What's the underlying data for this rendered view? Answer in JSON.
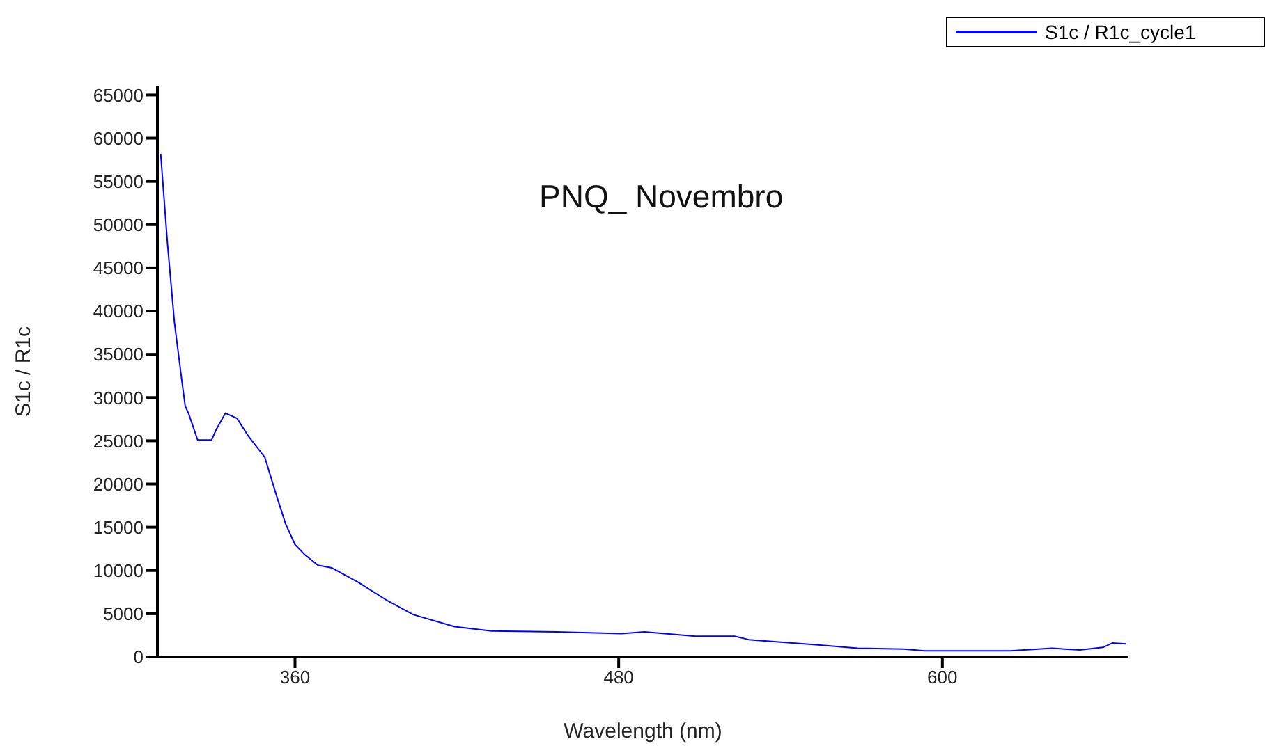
{
  "chart_data": {
    "type": "line",
    "title": "PNQ_ Novembro",
    "xlabel": "Wavelength (nm)",
    "ylabel": "S1c / R1c",
    "xlim": [
      309,
      669
    ],
    "xticks": [
      360,
      480,
      600
    ],
    "ylim": [
      0,
      66000
    ],
    "yticks": [
      0,
      5000,
      10000,
      15000,
      20000,
      25000,
      30000,
      35000,
      40000,
      45000,
      50000,
      55000,
      60000,
      65000
    ],
    "legend": "top right",
    "series": [
      {
        "name": "S1c / R1c_cycle1",
        "color": "#0000ff",
        "x": [
          310.2,
          312.7,
          315.3,
          317.9,
          319.3,
          320.5,
          323.9,
          329.1,
          330.8,
          334.2,
          338.5,
          342.8,
          348.8,
          353.1,
          356.5,
          360,
          363.4,
          368.5,
          373.7,
          383.1,
          394.3,
          403.8,
          419.2,
          432.9,
          457,
          481,
          489.6,
          508.5,
          523,
          528.2,
          541,
          553.1,
          568.6,
          585.7,
          593.4,
          606.3,
          625.2,
          640.7,
          651,
          659.5,
          663,
          668.1
        ],
        "values": [
          58200,
          47900,
          38700,
          32300,
          29000,
          28200,
          25100,
          25100,
          26300,
          28200,
          27600,
          25500,
          23100,
          18700,
          15400,
          13000,
          11900,
          10600,
          10300,
          8700,
          6500,
          4900,
          3500,
          3000,
          2900,
          2700,
          2900,
          2400,
          2400,
          2000,
          1700,
          1400,
          1000,
          900,
          700,
          700,
          700,
          1000,
          800,
          1100,
          1600,
          1500
        ]
      }
    ]
  }
}
